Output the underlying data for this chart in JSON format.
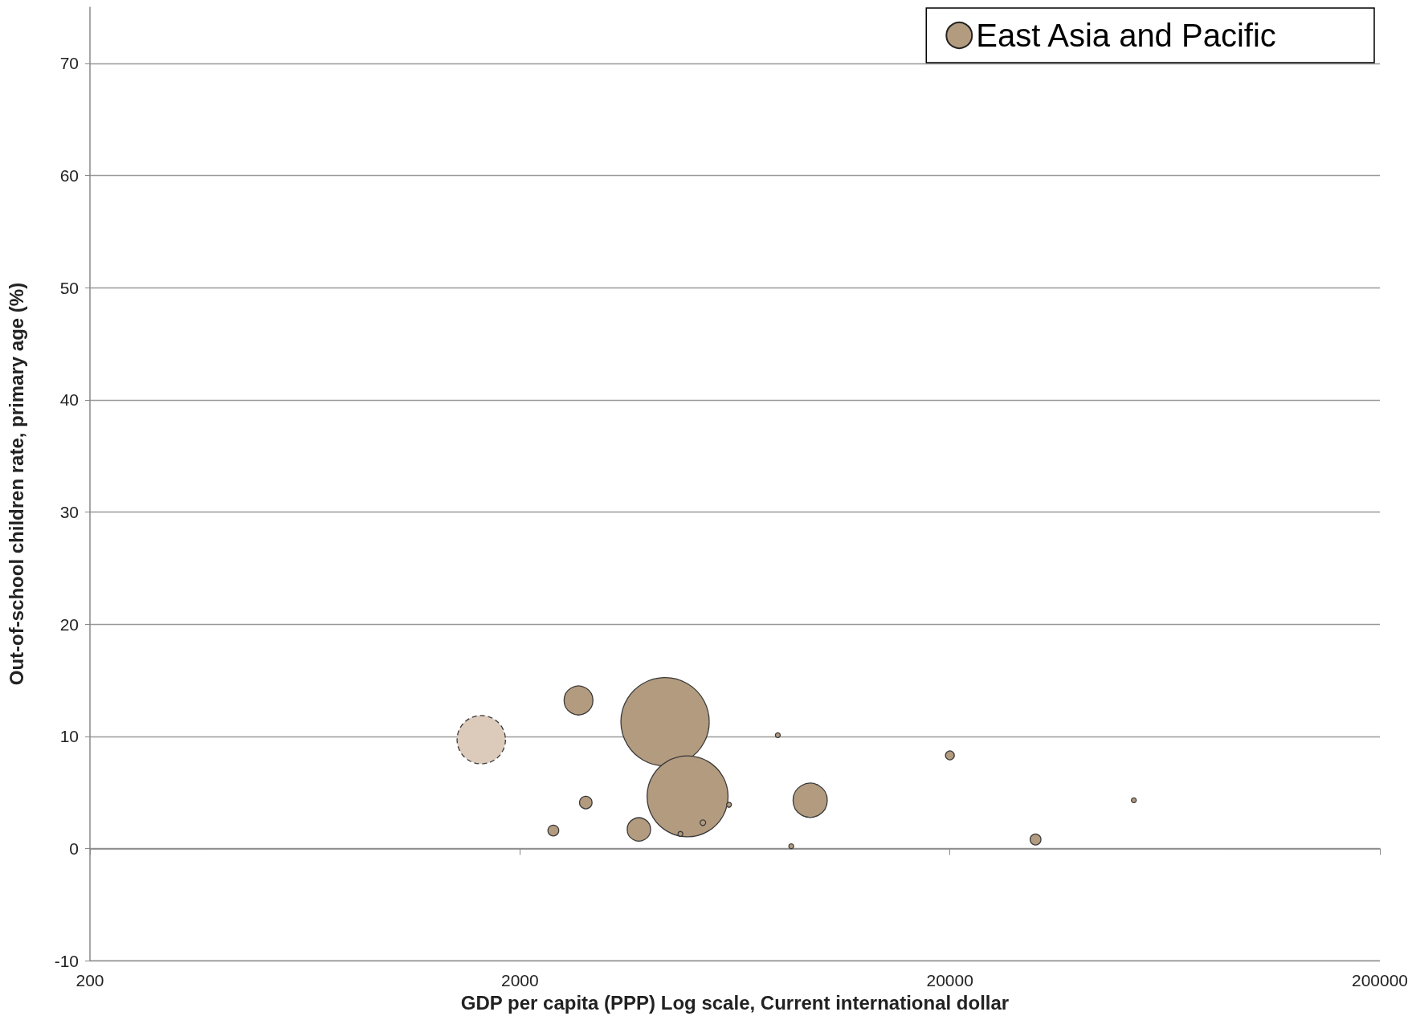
{
  "chart_data": {
    "type": "bubble",
    "xlabel": "GDP per capita (PPP) Log scale, Current international dollar",
    "ylabel": "Out-of-school children rate, primary age (%)",
    "log": "x",
    "xlim": [
      200,
      200000
    ],
    "xticks": [
      200,
      2000,
      20000,
      200000
    ],
    "ylim": [
      -10,
      75
    ],
    "yticks": [
      -10,
      0,
      10,
      20,
      30,
      40,
      50,
      60,
      70
    ],
    "grid": "y",
    "legend": "top right",
    "series": [
      {
        "name": "East Asia and Pacific",
        "color": "#b39b7f",
        "line_style": "solid",
        "x": [
          2737,
          4351,
          4908,
          2846,
          2392,
          3782,
          5329,
          4723,
          6128,
          7958,
          8552,
          9464,
          20000,
          31640,
          53560
        ],
        "values": [
          13.2,
          11.3,
          4.65,
          4.1,
          1.6,
          1.7,
          2.3,
          1.3,
          3.9,
          10.1,
          0.2,
          4.3,
          8.3,
          0.8,
          4.3
        ],
        "sizes": [
          0.107,
          1,
          0.84,
          0.02,
          0.015,
          0.07,
          0.004,
          0.003,
          0.003,
          0.003,
          0.003,
          0.15,
          0.01,
          0.015,
          0.003
        ]
      },
      {
        "color": "#dccbbb",
        "line_style": "dashed",
        "x": [
          1626
        ],
        "values": [
          9.7
        ],
        "sizes": [
          0.3
        ]
      }
    ]
  }
}
